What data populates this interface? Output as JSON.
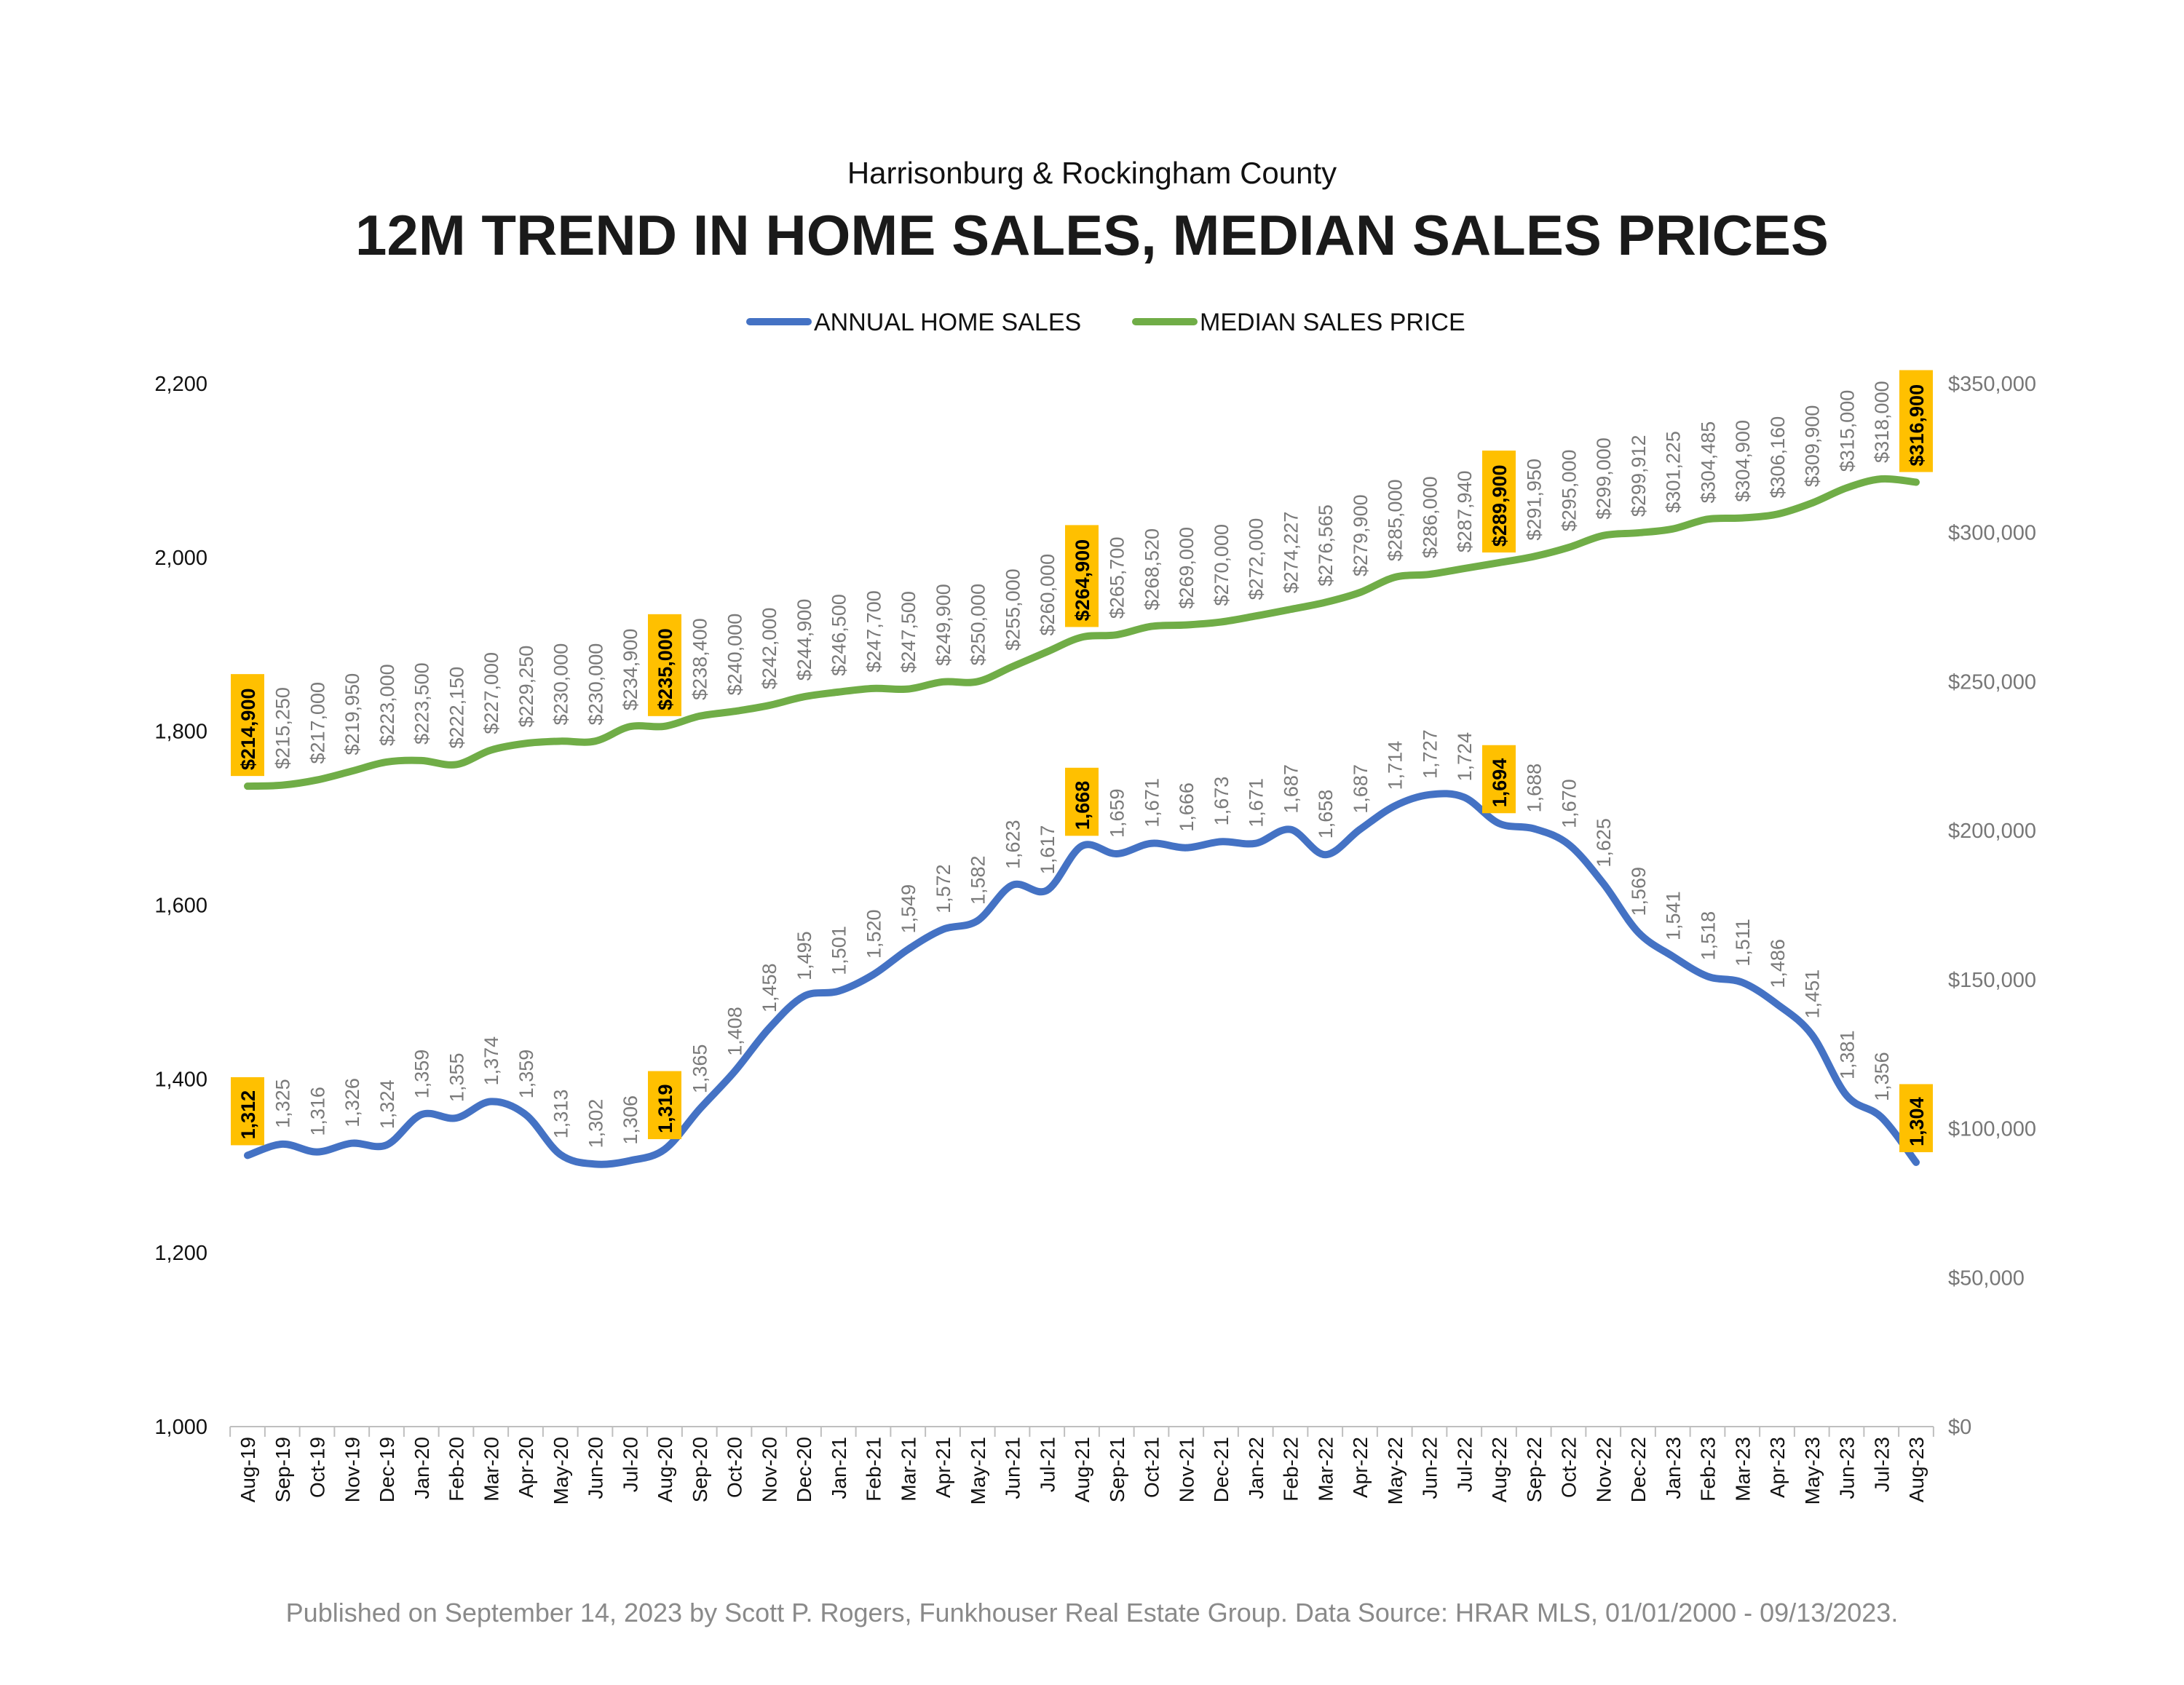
{
  "chart_data": {
    "type": "line",
    "subtitle": "Harrisonburg & Rockingham County",
    "title": "12M TREND IN HOME SALES, MEDIAN SALES PRICES",
    "footer": "Published on September 14, 2023 by Scott P. Rogers, Funkhouser Real Estate Group. Data Source: HRAR MLS, 01/01/2000 - 09/13/2023.",
    "legend_position": "top-center",
    "grid": false,
    "highlight_color": "#FFC000",
    "categories": [
      "Aug-19",
      "Sep-19",
      "Oct-19",
      "Nov-19",
      "Dec-19",
      "Jan-20",
      "Feb-20",
      "Mar-20",
      "Apr-20",
      "May-20",
      "Jun-20",
      "Jul-20",
      "Aug-20",
      "Sep-20",
      "Oct-20",
      "Nov-20",
      "Dec-20",
      "Jan-21",
      "Feb-21",
      "Mar-21",
      "Apr-21",
      "May-21",
      "Jun-21",
      "Jul-21",
      "Aug-21",
      "Sep-21",
      "Oct-21",
      "Nov-21",
      "Dec-21",
      "Jan-22",
      "Feb-22",
      "Mar-22",
      "Apr-22",
      "May-22",
      "Jun-22",
      "Jul-22",
      "Aug-22",
      "Sep-22",
      "Oct-22",
      "Nov-22",
      "Dec-22",
      "Jan-23",
      "Feb-23",
      "Mar-23",
      "Apr-23",
      "May-23",
      "Jun-23",
      "Jul-23",
      "Aug-23"
    ],
    "y_left": {
      "min": 1000,
      "max": 2200,
      "ticks": [
        "1,000",
        "1,200",
        "1,400",
        "1,600",
        "1,800",
        "2,000",
        "2,200"
      ]
    },
    "y_right": {
      "min": 0,
      "max": 350000,
      "ticks": [
        "$0",
        "$50,000",
        "$100,000",
        "$150,000",
        "$200,000",
        "$250,000",
        "$300,000",
        "$350,000"
      ]
    },
    "series": [
      {
        "name": "ANNUAL HOME SALES",
        "axis": "left",
        "color": "#4472C4",
        "values": [
          1312,
          1325,
          1316,
          1326,
          1324,
          1359,
          1355,
          1374,
          1359,
          1313,
          1302,
          1306,
          1319,
          1365,
          1408,
          1458,
          1495,
          1501,
          1520,
          1549,
          1572,
          1582,
          1623,
          1617,
          1668,
          1659,
          1671,
          1666,
          1673,
          1671,
          1687,
          1658,
          1687,
          1714,
          1727,
          1724,
          1694,
          1688,
          1670,
          1625,
          1569,
          1541,
          1518,
          1511,
          1486,
          1451,
          1381,
          1356,
          1304
        ],
        "labels": [
          "1,312",
          "1,325",
          "1,316",
          "1,326",
          "1,324",
          "1,359",
          "1,355",
          "1,374",
          "1,359",
          "1,313",
          "1,302",
          "1,306",
          "1,319",
          "1,365",
          "1,408",
          "1,458",
          "1,495",
          "1,501",
          "1,520",
          "1,549",
          "1,572",
          "1,582",
          "1,623",
          "1,617",
          "1,668",
          "1,659",
          "1,671",
          "1,666",
          "1,673",
          "1,671",
          "1,687",
          "1,658",
          "1,687",
          "1,714",
          "1,727",
          "1,724",
          "1,694",
          "1,688",
          "1,670",
          "1,625",
          "1,569",
          "1,541",
          "1,518",
          "1,511",
          "1,486",
          "1,451",
          "1,381",
          "1,356",
          "1,304"
        ],
        "highlight_indices": [
          0,
          12,
          24,
          36,
          48
        ]
      },
      {
        "name": "MEDIAN SALES PRICE",
        "axis": "right",
        "color": "#70AD47",
        "values": [
          214900,
          215250,
          217000,
          219950,
          223000,
          223500,
          222150,
          227000,
          229250,
          230000,
          230000,
          234900,
          235000,
          238400,
          240000,
          242000,
          244900,
          246500,
          247700,
          247500,
          249900,
          250000,
          255000,
          260000,
          264900,
          265700,
          268520,
          269000,
          270000,
          272000,
          274227,
          276565,
          279900,
          285000,
          286000,
          287940,
          289900,
          291950,
          295000,
          299000,
          299912,
          301225,
          304485,
          304900,
          306160,
          309900,
          315000,
          318000,
          316900
        ],
        "labels": [
          "$214,900",
          "$215,250",
          "$217,000",
          "$219,950",
          "$223,000",
          "$223,500",
          "$222,150",
          "$227,000",
          "$229,250",
          "$230,000",
          "$230,000",
          "$234,900",
          "$235,000",
          "$238,400",
          "$240,000",
          "$242,000",
          "$244,900",
          "$246,500",
          "$247,700",
          "$247,500",
          "$249,900",
          "$250,000",
          "$255,000",
          "$260,000",
          "$264,900",
          "$265,700",
          "$268,520",
          "$269,000",
          "$270,000",
          "$272,000",
          "$274,227",
          "$276,565",
          "$279,900",
          "$285,000",
          "$286,000",
          "$287,940",
          "$289,900",
          "$291,950",
          "$295,000",
          "$299,000",
          "$299,912",
          "$301,225",
          "$304,485",
          "$304,900",
          "$306,160",
          "$309,900",
          "$315,000",
          "$318,000",
          "$316,900"
        ],
        "highlight_indices": [
          0,
          12,
          24,
          36,
          48
        ]
      }
    ]
  }
}
